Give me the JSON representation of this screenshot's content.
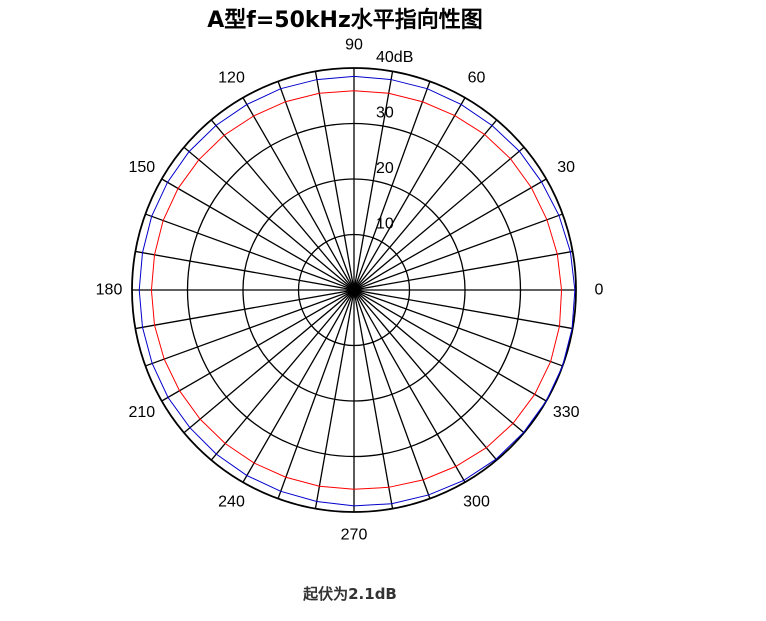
{
  "title": "A型f=50kHz水平指向性图",
  "footer": "起伏为2.1dB",
  "chart_data": {
    "type": "polar-line",
    "title": "A型f=50kHz水平指向性图",
    "r_unit": "dB",
    "r_range": [
      0,
      40
    ],
    "radial_ticks": [
      {
        "value": 10,
        "label": "10"
      },
      {
        "value": 20,
        "label": "20"
      },
      {
        "value": 30,
        "label": "30"
      },
      {
        "value": 40,
        "label": "40dB"
      }
    ],
    "angle_spokes_every_deg": 10,
    "angle_labels": [
      "0",
      "30",
      "60",
      "90",
      "120",
      "150",
      "180",
      "210",
      "240",
      "270",
      "300",
      "330"
    ],
    "ripple_note": "起伏为2.1dB",
    "series": [
      {
        "color": "#0000cc",
        "angles_deg": [
          0,
          10,
          20,
          30,
          40,
          50,
          60,
          70,
          80,
          90,
          100,
          110,
          120,
          130,
          140,
          150,
          160,
          170,
          180,
          190,
          200,
          210,
          220,
          230,
          240,
          250,
          260,
          270,
          280,
          290,
          300,
          310,
          320,
          330,
          340,
          350
        ],
        "values_db": [
          39.8,
          39.6,
          39.3,
          39.0,
          38.9,
          38.7,
          38.6,
          38.6,
          38.5,
          38.5,
          38.5,
          38.6,
          38.6,
          38.7,
          38.8,
          38.8,
          38.8,
          38.7,
          38.7,
          38.7,
          38.7,
          38.7,
          38.6,
          38.6,
          38.6,
          38.6,
          38.7,
          38.9,
          39.1,
          39.3,
          39.6,
          39.8,
          39.9,
          40.0,
          40.0,
          39.9
        ]
      },
      {
        "color": "#ff0000",
        "angles_deg": [
          0,
          10,
          20,
          30,
          40,
          50,
          60,
          70,
          80,
          90,
          100,
          110,
          120,
          130,
          140,
          150,
          160,
          170,
          180,
          190,
          200,
          210,
          220,
          230,
          240,
          250,
          260,
          270,
          280,
          290,
          300,
          310,
          320,
          330,
          340,
          350
        ],
        "values_db": [
          37.4,
          37.2,
          37.0,
          36.9,
          36.8,
          36.6,
          36.3,
          36.1,
          36.0,
          35.9,
          36.0,
          36.1,
          36.2,
          36.4,
          36.5,
          36.6,
          36.6,
          36.5,
          36.5,
          36.5,
          36.4,
          36.3,
          36.2,
          36.1,
          36.0,
          35.9,
          35.9,
          35.9,
          36.1,
          36.4,
          36.7,
          37.1,
          37.4,
          37.6,
          37.7,
          37.6
        ]
      }
    ]
  }
}
